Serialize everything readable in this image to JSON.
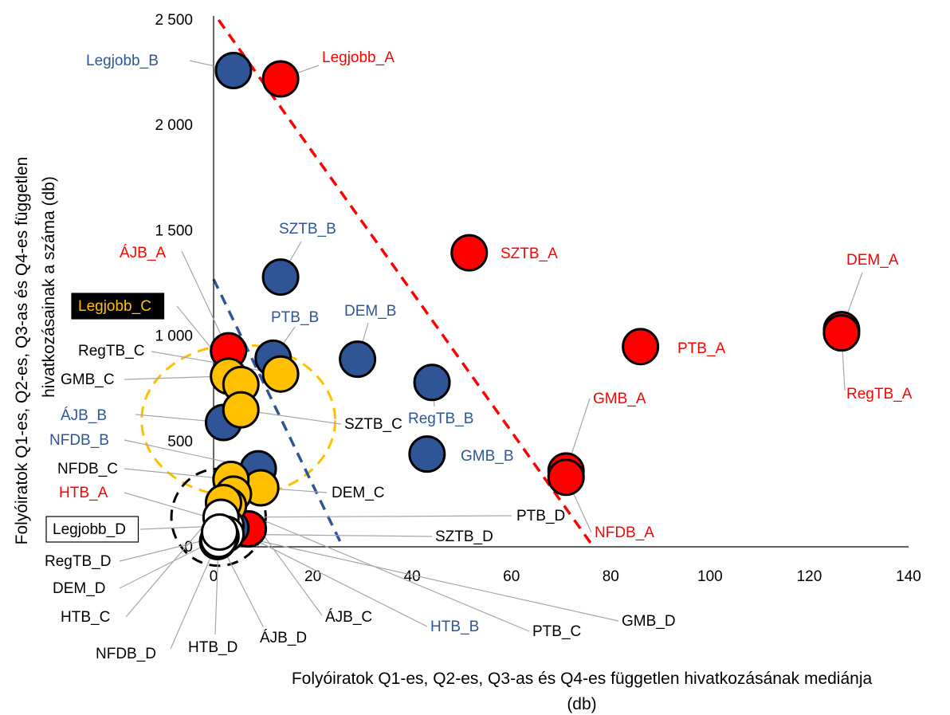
{
  "chart_data": {
    "type": "scatter",
    "xlabel_lines": [
      "Folyóiratok Q1-es, Q2-es, Q3-as és Q4-es független hivatkozásának mediánja",
      "(db)"
    ],
    "ylabel_lines": [
      "Folyóiratok Q1-es, Q2-es, Q3-as és Q4-es független",
      "hivatkozásainak a száma (db)"
    ],
    "xlim": [
      0,
      140
    ],
    "ylim": [
      0,
      2500
    ],
    "x_ticks": [
      0,
      20,
      40,
      60,
      80,
      100,
      120,
      140
    ],
    "y_ticks": [
      0,
      500,
      1000,
      1500,
      2000,
      2500
    ],
    "y_tick_labels": [
      "0",
      "500",
      "1 000",
      "1 500",
      "2 000",
      "2 500"
    ],
    "x_tick_labels": [
      "0",
      "20",
      "40",
      "60",
      "80",
      "100",
      "120",
      "140"
    ],
    "grid": false,
    "colors": {
      "A": "#ff0000",
      "B": "#2f5597",
      "C": "#ffc000",
      "D": "#ffffff",
      "A_text": "#ff0000",
      "B_text": "#2f5597",
      "C_text": "#000000",
      "D_text": "#000000"
    },
    "series": [
      {
        "name": "A",
        "points": [
          {
            "label": "Legjobb_A",
            "x": 13.5,
            "y": 2220
          },
          {
            "label": "SZTB_A",
            "x": 51.5,
            "y": 1395
          },
          {
            "label": "DEM_A",
            "x": 126.5,
            "y": 1030
          },
          {
            "label": "RegTB_A",
            "x": 126.5,
            "y": 1015
          },
          {
            "label": "PTB_A",
            "x": 86,
            "y": 950
          },
          {
            "label": "GMB_A",
            "x": 71,
            "y": 360
          },
          {
            "label": "NFDB_A",
            "x": 71,
            "y": 330
          },
          {
            "label": "ÁJB_A",
            "x": 3,
            "y": 930
          },
          {
            "label": "HTB_A",
            "x": 7,
            "y": 85
          }
        ]
      },
      {
        "name": "B",
        "points": [
          {
            "label": "Legjobb_B",
            "x": 4,
            "y": 2260
          },
          {
            "label": "SZTB_B",
            "x": 13.5,
            "y": 1280
          },
          {
            "label": "DEM_B",
            "x": 29,
            "y": 890
          },
          {
            "label": "PTB_B",
            "x": 12,
            "y": 895
          },
          {
            "label": "RegTB_B",
            "x": 44,
            "y": 780
          },
          {
            "label": "GMB_B",
            "x": 43,
            "y": 440
          },
          {
            "label": "ÁJB_B",
            "x": 2,
            "y": 590
          },
          {
            "label": "NFDB_B",
            "x": 9,
            "y": 370
          },
          {
            "label": "HTB_B",
            "x": 3.5,
            "y": 90
          }
        ]
      },
      {
        "name": "C",
        "points": [
          {
            "label": "RegTB_C",
            "x": 13.5,
            "y": 820
          },
          {
            "label": "GMB_C",
            "x": 3,
            "y": 810
          },
          {
            "label": "Legjobb_C",
            "x": 5.5,
            "y": 770
          },
          {
            "label": "SZTB_C",
            "x": 5.5,
            "y": 650
          },
          {
            "label": "DEM_C",
            "x": 9.5,
            "y": 280
          },
          {
            "label": "NFDB_C",
            "x": 3.5,
            "y": 320
          },
          {
            "label": "ÁJB_C",
            "x": 4,
            "y": 250
          },
          {
            "label": "PTB_C",
            "x": 3,
            "y": 195
          },
          {
            "label": "HTB_C",
            "x": 2,
            "y": 210
          }
        ]
      },
      {
        "name": "D",
        "points": [
          {
            "label": "Legjobb_D",
            "x": 2.5,
            "y": 100
          },
          {
            "label": "PTB_D",
            "x": 1.5,
            "y": 140
          },
          {
            "label": "SZTB_D",
            "x": 2.5,
            "y": 60
          },
          {
            "label": "RegTB_D",
            "x": 1.5,
            "y": 50
          },
          {
            "label": "DEM_D",
            "x": 1,
            "y": 40
          },
          {
            "label": "HTB_D",
            "x": 1,
            "y": 30
          },
          {
            "label": "NFDB_D",
            "x": 0.8,
            "y": 25
          },
          {
            "label": "ÁJB_D",
            "x": 1,
            "y": 35
          },
          {
            "label": "GMB_D",
            "x": 1.2,
            "y": 70
          }
        ]
      }
    ],
    "trend_lines": [
      {
        "series": "A",
        "x": [
          1,
          76.5
        ],
        "y": [
          2500,
          0
        ]
      },
      {
        "series": "B",
        "x": [
          0,
          26
        ],
        "y": [
          1270,
          0
        ]
      }
    ],
    "cluster_ellipses": [
      {
        "series": "C",
        "cx": 5,
        "cy": 600,
        "rx": 19.5,
        "ry": 360
      },
      {
        "series": "D",
        "cx": 1,
        "cy": 140,
        "rx": 9.5,
        "ry": 230
      }
    ]
  }
}
